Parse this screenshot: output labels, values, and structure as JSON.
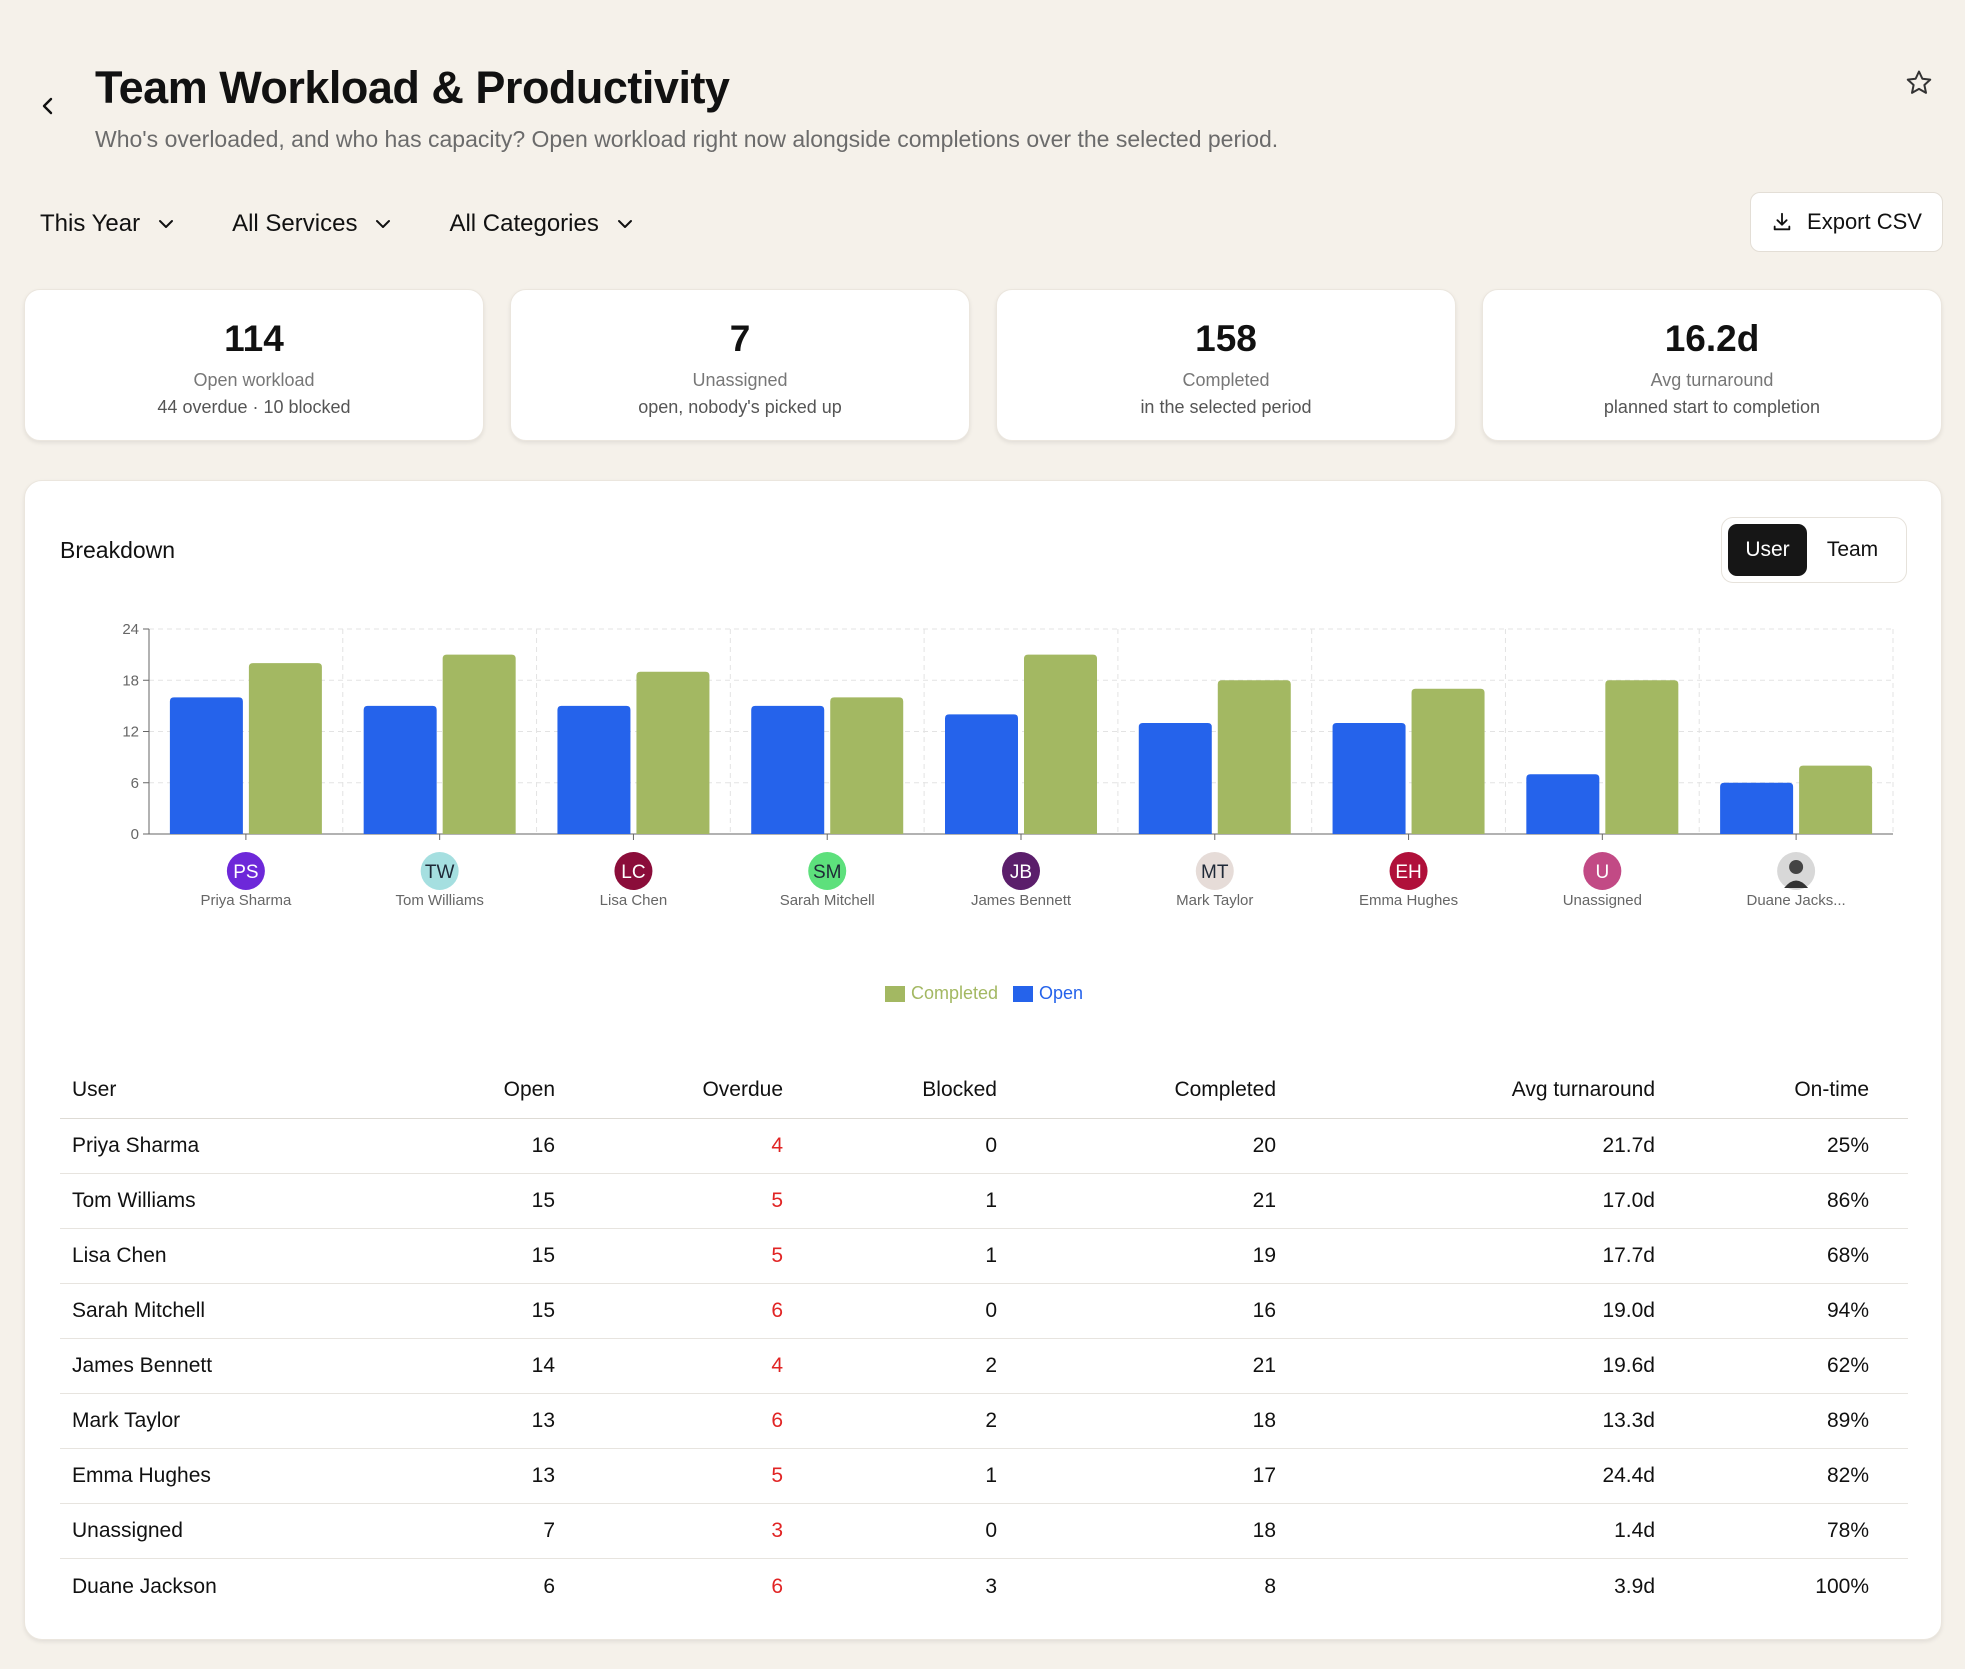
{
  "header": {
    "title": "Team Workload & Productivity",
    "subtitle": "Who's overloaded, and who has capacity? Open workload right now alongside completions over the selected period."
  },
  "filters": {
    "period": "This Year",
    "services": "All Services",
    "categories": "All Categories"
  },
  "export_label": "Export CSV",
  "kpis": [
    {
      "value": "114",
      "label": "Open workload",
      "sub": "44 overdue · 10 blocked"
    },
    {
      "value": "7",
      "label": "Unassigned",
      "sub": "open, nobody's picked up"
    },
    {
      "value": "158",
      "label": "Completed",
      "sub": "in the selected period"
    },
    {
      "value": "16.2d",
      "label": "Avg turnaround",
      "sub": "planned start to completion"
    }
  ],
  "breakdown": {
    "title": "Breakdown",
    "toggle": {
      "user": "User",
      "team": "Team",
      "active": "user"
    }
  },
  "colors": {
    "open": "#2563eb",
    "completed": "#a3b862",
    "overdue": "#e12424"
  },
  "chart_data": {
    "type": "bar",
    "categories": [
      "Priya Sharma",
      "Tom Williams",
      "Lisa Chen",
      "Sarah Mitchell",
      "James Bennett",
      "Mark Taylor",
      "Emma Hughes",
      "Unassigned",
      "Duane Jacks..."
    ],
    "avatars": [
      {
        "initials": "PS",
        "color": "#6d28d9",
        "text": "#ffffff"
      },
      {
        "initials": "TW",
        "color": "#a5dfe0",
        "text": "#1f2937"
      },
      {
        "initials": "LC",
        "color": "#8b0d3a",
        "text": "#ffffff"
      },
      {
        "initials": "SM",
        "color": "#5de07c",
        "text": "#1f2937"
      },
      {
        "initials": "JB",
        "color": "#5b1e6b",
        "text": "#ffffff"
      },
      {
        "initials": "MT",
        "color": "#e6dcd8",
        "text": "#1f2937"
      },
      {
        "initials": "EH",
        "color": "#b0103a",
        "text": "#ffffff"
      },
      {
        "initials": "U",
        "color": "#c24a85",
        "text": "#ffffff"
      },
      {
        "initials": "",
        "color": "#d8d8d8",
        "text": "#1f2937",
        "photo": true
      }
    ],
    "series": [
      {
        "name": "Open",
        "values": [
          16,
          15,
          15,
          15,
          14,
          13,
          13,
          7,
          6
        ]
      },
      {
        "name": "Completed",
        "values": [
          20,
          21,
          19,
          16,
          21,
          18,
          17,
          18,
          8
        ]
      }
    ],
    "ylim": [
      0,
      24
    ],
    "yticks": [
      "0",
      "6",
      "12",
      "18",
      "24"
    ],
    "legend": [
      "Completed",
      "Open"
    ],
    "legend_position": "bottom-center",
    "grid": true
  },
  "table": {
    "headers": {
      "user": "User",
      "open": "Open",
      "overdue": "Overdue",
      "blocked": "Blocked",
      "completed": "Completed",
      "avg": "Avg turnaround",
      "ontime": "On-time"
    },
    "rows": [
      {
        "user": "Priya Sharma",
        "open": "16",
        "overdue": "4",
        "blocked": "0",
        "completed": "20",
        "avg": "21.7d",
        "ontime": "25%"
      },
      {
        "user": "Tom Williams",
        "open": "15",
        "overdue": "5",
        "blocked": "1",
        "completed": "21",
        "avg": "17.0d",
        "ontime": "86%"
      },
      {
        "user": "Lisa Chen",
        "open": "15",
        "overdue": "5",
        "blocked": "1",
        "completed": "19",
        "avg": "17.7d",
        "ontime": "68%"
      },
      {
        "user": "Sarah Mitchell",
        "open": "15",
        "overdue": "6",
        "blocked": "0",
        "completed": "16",
        "avg": "19.0d",
        "ontime": "94%"
      },
      {
        "user": "James Bennett",
        "open": "14",
        "overdue": "4",
        "blocked": "2",
        "completed": "21",
        "avg": "19.6d",
        "ontime": "62%"
      },
      {
        "user": "Mark Taylor",
        "open": "13",
        "overdue": "6",
        "blocked": "2",
        "completed": "18",
        "avg": "13.3d",
        "ontime": "89%"
      },
      {
        "user": "Emma Hughes",
        "open": "13",
        "overdue": "5",
        "blocked": "1",
        "completed": "17",
        "avg": "24.4d",
        "ontime": "82%"
      },
      {
        "user": "Unassigned",
        "open": "7",
        "overdue": "3",
        "blocked": "0",
        "completed": "18",
        "avg": "1.4d",
        "ontime": "78%"
      },
      {
        "user": "Duane Jackson",
        "open": "6",
        "overdue": "6",
        "blocked": "3",
        "completed": "8",
        "avg": "3.9d",
        "ontime": "100%"
      }
    ]
  }
}
